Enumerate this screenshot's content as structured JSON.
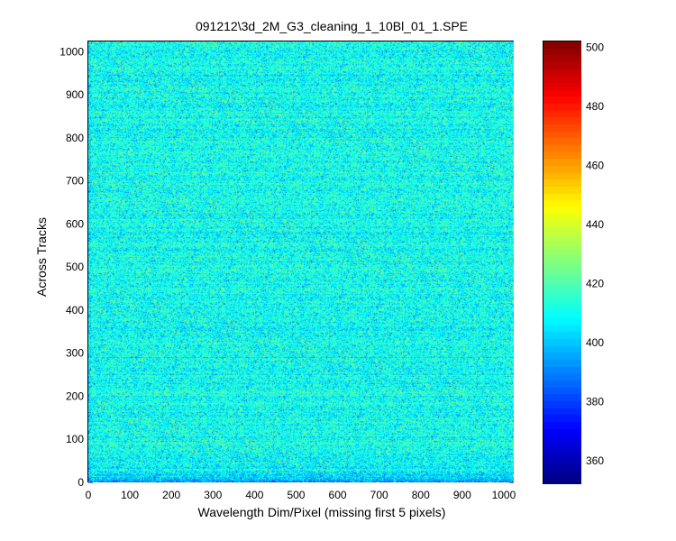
{
  "chart_data": {
    "type": "heatmap",
    "title": "091212\\3d_2M_G3_cleaning_1_10Bl_01_1.SPE",
    "xlabel": "Wavelength Dim/Pixel (missing first 5 pixels)",
    "ylabel": "Across Tracks",
    "xlim": [
      0,
      1024
    ],
    "ylim": [
      0,
      1024
    ],
    "x_ticks": [
      "0",
      "100",
      "200",
      "300",
      "400",
      "500",
      "600",
      "700",
      "800",
      "900",
      "1000"
    ],
    "y_ticks": [
      "0",
      "100",
      "200",
      "300",
      "400",
      "500",
      "600",
      "700",
      "800",
      "900",
      "1000"
    ],
    "colormap": "jet",
    "color_range": [
      352,
      502
    ],
    "colorbar_ticks": [
      "360",
      "380",
      "400",
      "420",
      "440",
      "460",
      "480",
      "500"
    ],
    "value_mean": 410,
    "value_spread": 9,
    "bottom_rows_low": true,
    "grid": false
  }
}
